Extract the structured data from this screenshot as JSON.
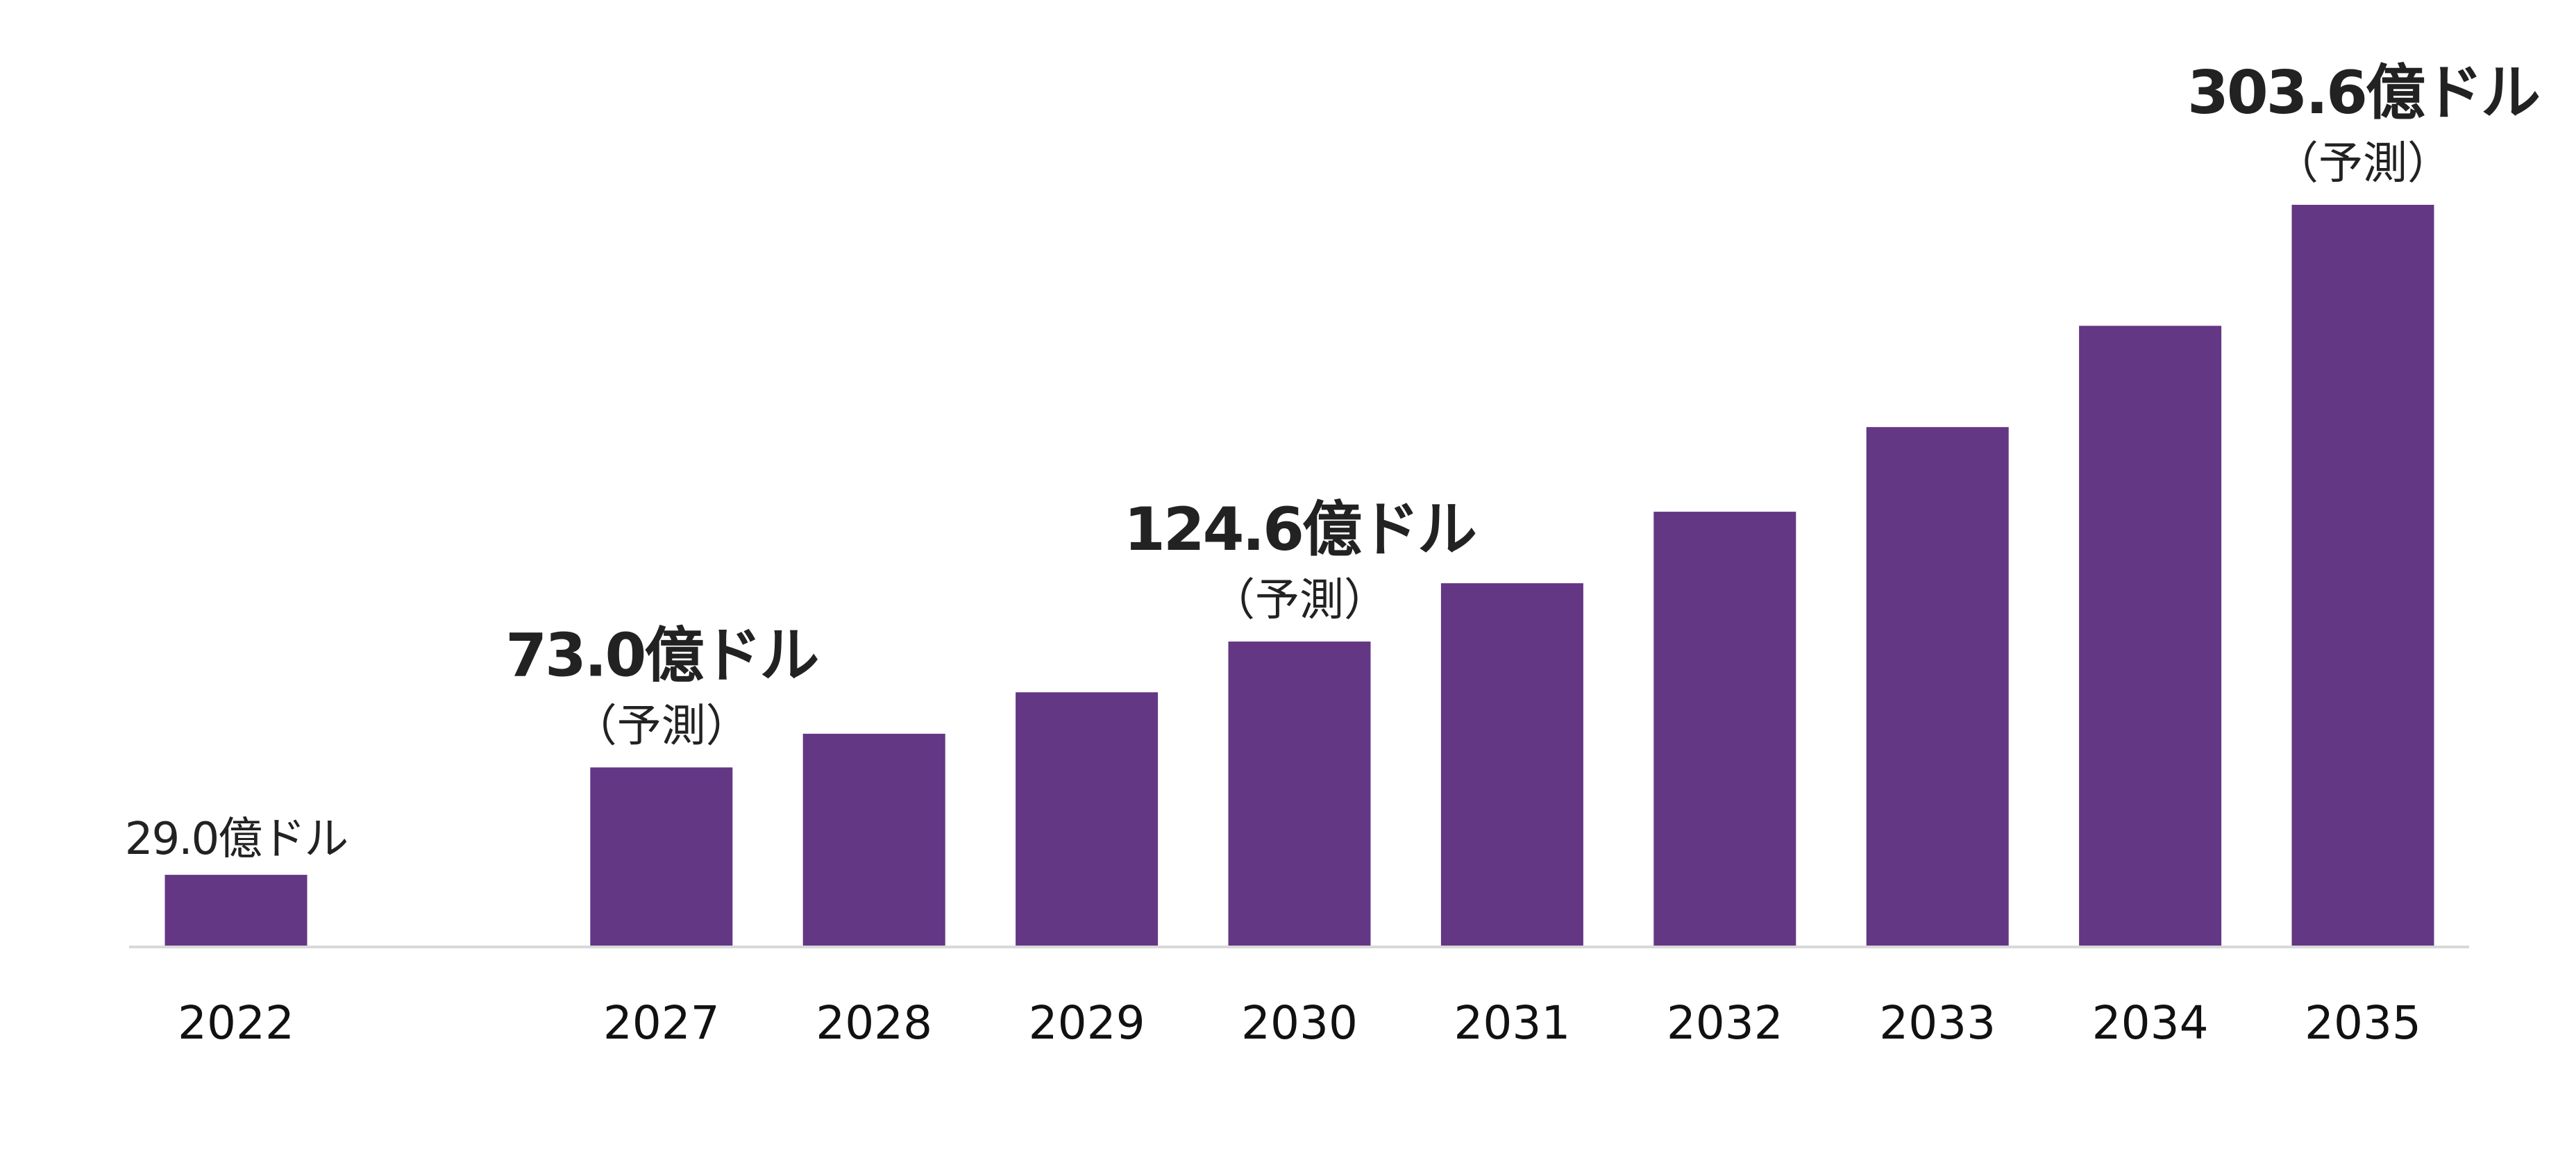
{
  "chart_data": {
    "type": "bar",
    "title": "",
    "xlabel": "",
    "ylabel": "",
    "unit": "億ドル",
    "ylim": [
      0,
      303.6
    ],
    "grid": false,
    "legend": "none",
    "bar_color": "#633784",
    "axis_color": "#d9d9d9",
    "text_color": "#222222",
    "categories": [
      "2022",
      "2027",
      "2028",
      "2029",
      "2030",
      "2031",
      "2032",
      "2033",
      "2034",
      "2035"
    ],
    "slot_index": [
      0,
      2,
      3,
      4,
      5,
      6,
      7,
      8,
      9,
      10
    ],
    "values": [
      29.0,
      73.0,
      86.8,
      103.8,
      124.6,
      148.5,
      177.8,
      212.5,
      254.0,
      303.6
    ],
    "annotations": [
      {
        "category": "2022",
        "label": "29.0億ドル",
        "note": "",
        "emphasis": false
      },
      {
        "category": "2027",
        "label": "73.0億ドル",
        "note": "（予測）",
        "emphasis": true
      },
      {
        "category": "2030",
        "label": "124.6億ドル",
        "note": "（予測）",
        "emphasis": true
      },
      {
        "category": "2035",
        "label": "303.6億ドル",
        "note": "（予測）",
        "emphasis": true
      }
    ]
  }
}
